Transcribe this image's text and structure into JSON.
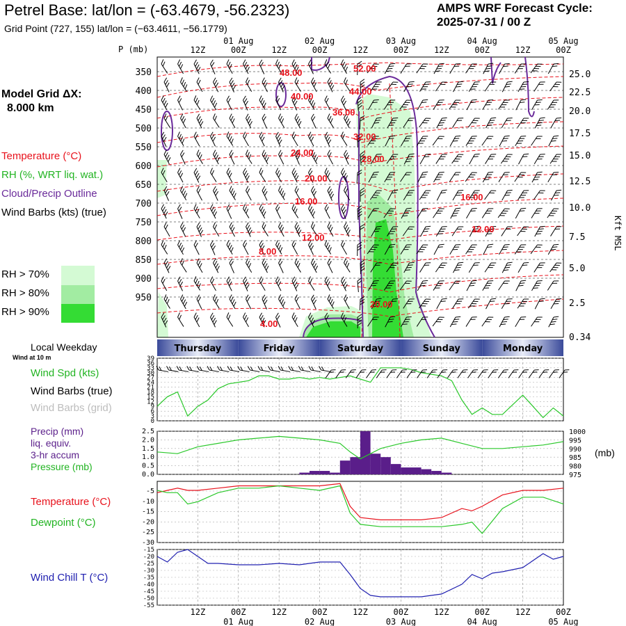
{
  "header": {
    "title": "Petrel Base:  lat/lon = (-63.4679, -56.2323)",
    "grid_point": "Grid Point (727, 155) lat/lon = (−63.4611, −56.1779)",
    "cycle_line1": "AMPS WRF Forecast Cycle:",
    "cycle_line2": "2025-07-31 / 00  Z"
  },
  "model_grid": {
    "label": "Model Grid ΔX:",
    "value": "8.000 km"
  },
  "xaxis": {
    "hour_labels": [
      "12Z",
      "00Z",
      "12Z",
      "00Z",
      "12Z",
      "00Z",
      "12Z",
      "00Z",
      "12Z",
      "00Z"
    ],
    "date_labels": [
      "01 Aug",
      "02 Aug",
      "03 Aug",
      "04 Aug",
      "05 Aug"
    ],
    "weekdays": [
      "Thursday",
      "Friday",
      "Saturday",
      "Sunday",
      "Monday"
    ],
    "weekday_title": "Local Weekday"
  },
  "colors": {
    "temperature": "#e8121c",
    "rh": "#2ac82a",
    "cloud": "#6a2a9a",
    "wind_chill": "#2020b0",
    "precip": "#5a1e8a",
    "rh70": "#d4fad4",
    "rh80": "#a2eca2",
    "rh90": "#34dc34"
  },
  "cross_section": {
    "pressure_axis_label": "P (mb)",
    "pressure_levels": [
      "350",
      "400",
      "450",
      "500",
      "550",
      "600",
      "650",
      "700",
      "750",
      "800",
      "850",
      "900",
      "950"
    ],
    "height_axis_label": "Kft MSL",
    "height_levels": [
      "25.0",
      "22.5",
      "20.0",
      "17.5",
      "15.0",
      "12.5",
      "10.0",
      "7.5",
      "5.0",
      "2.5",
      "0.34"
    ],
    "legend": {
      "temperature": "Temperature (°C)",
      "rh": "RH (%, WRT liq. wat.)",
      "cloud": "Cloud/Precip Outline",
      "wind": "Wind Barbs (kts) (true)"
    },
    "rh_scale": [
      "RH > 70%",
      "RH > 80%",
      "RH > 90%"
    ],
    "temp_labels": [
      "48.00",
      "52.00",
      "40.00",
      "44.00",
      "36.00",
      "32.00",
      "24.00",
      "28.00",
      "20.00",
      "16.00",
      "16.00",
      "12.00",
      "12.00",
      "8.00",
      "20.00",
      "4.00"
    ]
  },
  "wind_panel": {
    "subtitle": "Wind at 10 m",
    "speed_label": "Wind Spd (kts)",
    "barbs_true_label": "Wind Barbs (true)",
    "barbs_grid_label": "Wind Barbs (grid)",
    "ticks": [
      "39",
      "36",
      "33",
      "30",
      "27",
      "24",
      "21",
      "18",
      "15",
      "12",
      "9",
      "6",
      "3",
      "0"
    ]
  },
  "precip_panel": {
    "labels": [
      "Precip (mm)",
      "liq. equiv.",
      "3-hr accum",
      "Pressure (mb)"
    ],
    "left_ticks": [
      "2.5",
      "2.0",
      "1.5",
      "1.0",
      "0.5",
      "0.0"
    ],
    "right_ticks": [
      "1000",
      "995",
      "990",
      "985",
      "980",
      "975"
    ],
    "right_unit": "(mb)"
  },
  "temp_panel": {
    "labels": [
      "Temperature (°C)",
      "Dewpoint (°C)"
    ],
    "ticks": [
      "-5",
      "-10",
      "-15",
      "-20",
      "-25",
      "-30"
    ]
  },
  "chill_panel": {
    "label": "Wind Chill T (°C)",
    "ticks": [
      "-15",
      "-20",
      "-25",
      "-30",
      "-35",
      "-40",
      "-45",
      "-50",
      "-55"
    ]
  },
  "chart_data": [
    {
      "type": "line",
      "title": "Wind at 10 m",
      "ylabel": "Wind Spd (kts)",
      "ylim": [
        0,
        39
      ],
      "x_hours": [
        0,
        3,
        6,
        9,
        12,
        15,
        18,
        21,
        24,
        27,
        30,
        33,
        36,
        39,
        42,
        45,
        48,
        51,
        54,
        57,
        60,
        63,
        66,
        69,
        72,
        75,
        78,
        81,
        84,
        87,
        90,
        93,
        96,
        99,
        102,
        105,
        108,
        111,
        114,
        117,
        120
      ],
      "series": [
        {
          "name": "Wind Spd (kts)",
          "values": [
            9,
            15,
            18,
            3,
            9,
            13,
            20,
            23,
            24,
            25,
            28,
            28,
            26,
            26,
            27,
            26,
            27,
            26,
            27,
            28,
            26,
            24,
            33,
            33,
            33,
            32,
            30,
            29,
            28,
            25,
            13,
            4,
            8,
            4,
            4,
            10,
            16,
            9,
            2,
            8,
            3
          ]
        }
      ]
    },
    {
      "type": "bar",
      "title": "Precip (mm) liq. equiv. 3-hr accum",
      "ylabel": "Precip (mm)",
      "ylim": [
        0,
        2.5
      ],
      "x_hours": [
        42,
        45,
        48,
        51,
        54,
        57,
        60,
        63,
        66,
        69,
        72,
        75,
        78,
        81,
        84
      ],
      "values": [
        0.1,
        0.2,
        0.2,
        0.1,
        0.8,
        1.0,
        2.5,
        1.2,
        1.0,
        0.6,
        0.4,
        0.4,
        0.3,
        0.2,
        0.1
      ]
    },
    {
      "type": "line",
      "title": "Pressure (mb)",
      "ylabel": "Pressure (mb)",
      "ylim": [
        975,
        1000
      ],
      "x_hours": [
        0,
        6,
        12,
        18,
        24,
        30,
        36,
        42,
        48,
        54,
        57,
        60,
        66,
        72,
        78,
        84,
        90,
        96,
        102,
        108,
        114,
        120
      ],
      "series": [
        {
          "name": "Pressure (mb)",
          "values": [
            988,
            987,
            991,
            993,
            995,
            996,
            997,
            996,
            995,
            993,
            988,
            984,
            990,
            993,
            995,
            996,
            993,
            990,
            990,
            991,
            992,
            994
          ]
        }
      ]
    },
    {
      "type": "line",
      "title": "Temperature / Dewpoint",
      "ylabel": "(°C)",
      "ylim": [
        -30,
        -3
      ],
      "x_hours": [
        0,
        3,
        6,
        9,
        12,
        18,
        24,
        30,
        36,
        42,
        48,
        54,
        57,
        60,
        66,
        72,
        78,
        84,
        90,
        93,
        96,
        102,
        108,
        114,
        120
      ],
      "series": [
        {
          "name": "Temperature (°C)",
          "values": [
            -8,
            -7,
            -6,
            -7,
            -7,
            -6,
            -5,
            -5,
            -5,
            -5,
            -5,
            -4,
            -14,
            -19,
            -20,
            -20,
            -20,
            -19,
            -15,
            -16,
            -14,
            -9,
            -7,
            -7,
            -6
          ]
        },
        {
          "name": "Dewpoint (°C)",
          "values": [
            -7,
            -8,
            -8,
            -13,
            -12,
            -8,
            -6,
            -6,
            -5,
            -6,
            -7,
            -5,
            -17,
            -22,
            -23,
            -23,
            -23,
            -23,
            -22,
            -21,
            -26,
            -15,
            -10,
            -10,
            -13
          ]
        }
      ]
    },
    {
      "type": "line",
      "title": "Wind Chill T",
      "ylabel": "Wind Chill T (°C)",
      "ylim": [
        -55,
        -15
      ],
      "x_hours": [
        0,
        3,
        6,
        9,
        12,
        15,
        18,
        24,
        30,
        36,
        42,
        48,
        54,
        57,
        60,
        63,
        66,
        72,
        78,
        84,
        90,
        93,
        96,
        99,
        102,
        108,
        114,
        117,
        120
      ],
      "series": [
        {
          "name": "Wind Chill T (°C)",
          "values": [
            -20,
            -24,
            -17,
            -15,
            -20,
            -25,
            -25,
            -26,
            -26,
            -25,
            -26,
            -24,
            -24,
            -33,
            -43,
            -48,
            -49,
            -49,
            -49,
            -47,
            -40,
            -33,
            -36,
            -32,
            -31,
            -28,
            -18,
            -22,
            -20
          ]
        }
      ]
    }
  ]
}
